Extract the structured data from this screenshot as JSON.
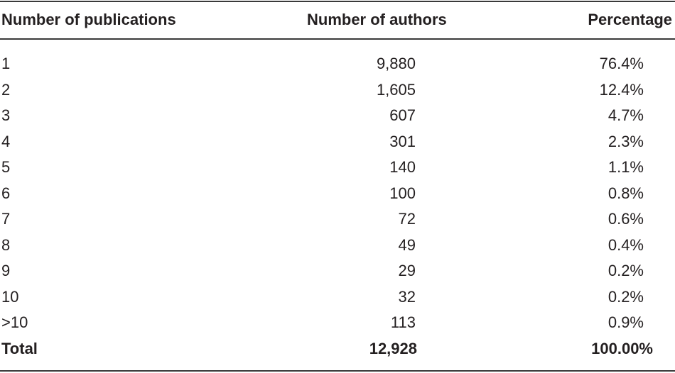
{
  "table": {
    "header": [
      "Number of publications",
      "Number of authors",
      "Percentage"
    ],
    "rows": [
      [
        "1",
        "9,880",
        "76.4%"
      ],
      [
        "2",
        "1,605",
        "12.4%"
      ],
      [
        "3",
        "607",
        "4.7%"
      ],
      [
        "4",
        "301",
        "2.3%"
      ],
      [
        "5",
        "140",
        "1.1%"
      ],
      [
        "6",
        "100",
        "0.8%"
      ],
      [
        "7",
        "72",
        "0.6%"
      ],
      [
        "8",
        "49",
        "0.4%"
      ],
      [
        "9",
        "29",
        "0.2%"
      ],
      [
        "10",
        "32",
        "0.2%"
      ],
      [
        ">10",
        "113",
        "0.9%"
      ]
    ],
    "total": [
      "Total",
      "12,928",
      "100.00%"
    ]
  }
}
